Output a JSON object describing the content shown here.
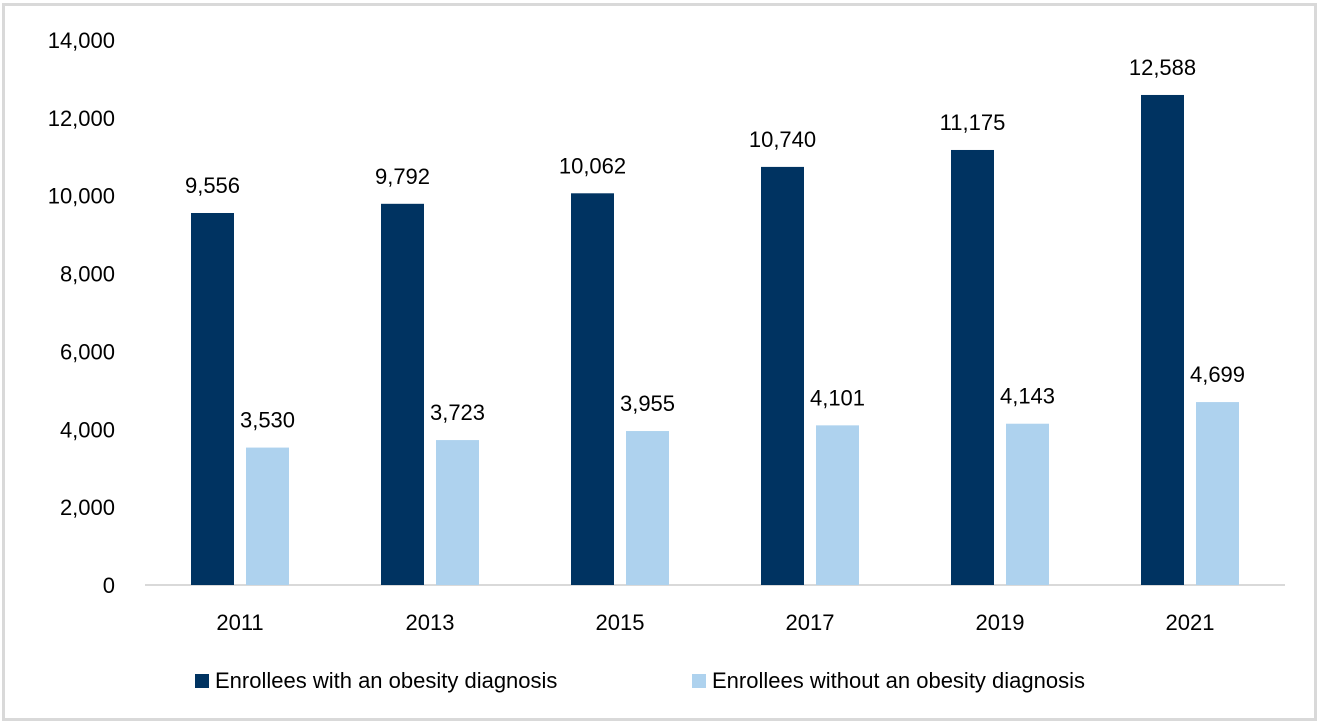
{
  "chart_data": {
    "type": "bar",
    "title": "",
    "xlabel": "",
    "ylabel": "",
    "categories": [
      "2011",
      "2013",
      "2015",
      "2017",
      "2019",
      "2021"
    ],
    "series": [
      {
        "name": "Enrollees with an obesity diagnosis",
        "color": "#003361",
        "values": [
          9556,
          9792,
          10062,
          10740,
          11175,
          12588
        ],
        "labels": [
          "9,556",
          "9,792",
          "10,062",
          "10,740",
          "11,175",
          "12,588"
        ]
      },
      {
        "name": "Enrollees without an obesity diagnosis",
        "color": "#aed2ee",
        "values": [
          3530,
          3723,
          3955,
          4101,
          4143,
          4699
        ],
        "labels": [
          "3,530",
          "3,723",
          "3,955",
          "4,101",
          "4,143",
          "4,699"
        ]
      }
    ],
    "ylim": [
      0,
      14000
    ],
    "yticks": [
      0,
      2000,
      4000,
      6000,
      8000,
      10000,
      12000,
      14000
    ],
    "ytick_labels": [
      "0",
      "2,000",
      "4,000",
      "6,000",
      "8,000",
      "10,000",
      "12,000",
      "14,000"
    ],
    "grid": false,
    "legend_position": "bottom"
  }
}
